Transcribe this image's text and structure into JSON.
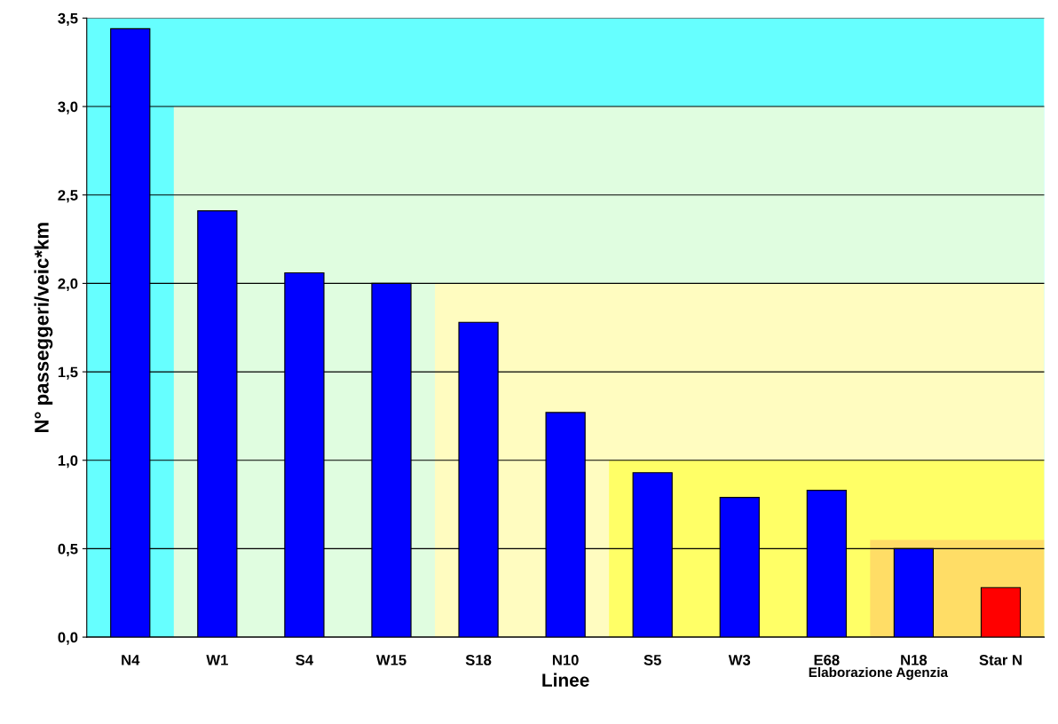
{
  "chart_data": {
    "type": "bar",
    "xlabel": "Linee",
    "ylabel": "N° passeggeri/veic*km",
    "categories": [
      "N4",
      "W1",
      "S4",
      "W15",
      "S18",
      "N10",
      "S5",
      "W3",
      "E68",
      "N18",
      "Star N"
    ],
    "values": [
      3.44,
      2.41,
      2.06,
      2.0,
      1.78,
      1.27,
      0.93,
      0.79,
      0.83,
      0.5,
      0.28
    ],
    "colors": [
      "#0000ff",
      "#0000ff",
      "#0000ff",
      "#0000ff",
      "#0000ff",
      "#0000ff",
      "#0000ff",
      "#0000ff",
      "#0000ff",
      "#0000ff",
      "#ff0000"
    ],
    "ylim": [
      0,
      3.5
    ],
    "yticks": [
      {
        "value": 0,
        "label": "0,0"
      },
      {
        "value": 0.5,
        "label": "0,5"
      },
      {
        "value": 1,
        "label": "1,0"
      },
      {
        "value": 1.5,
        "label": "1,5"
      },
      {
        "value": 2,
        "label": "2,0"
      },
      {
        "value": 2.5,
        "label": "2,5"
      },
      {
        "value": 3,
        "label": "3,0"
      },
      {
        "value": 3.5,
        "label": "3,5"
      }
    ],
    "grid": "y",
    "bands": [
      {
        "axis": "y",
        "from": 0,
        "to": 3.5,
        "color": "#66ffff"
      },
      {
        "axis": "y",
        "from": 0,
        "to": 3.0,
        "color": "#e0fde0"
      },
      {
        "axis": "y",
        "from": 0,
        "to": 2.0,
        "color": "#fffcc0"
      },
      {
        "axis": "y",
        "from": 0,
        "to": 1.0,
        "color": "#ffff66"
      },
      {
        "axis": "y",
        "from": 0,
        "to": 0.55,
        "color": "#ffdd66"
      }
    ],
    "annotations": [
      "Elaborazione Agenzia"
    ]
  }
}
